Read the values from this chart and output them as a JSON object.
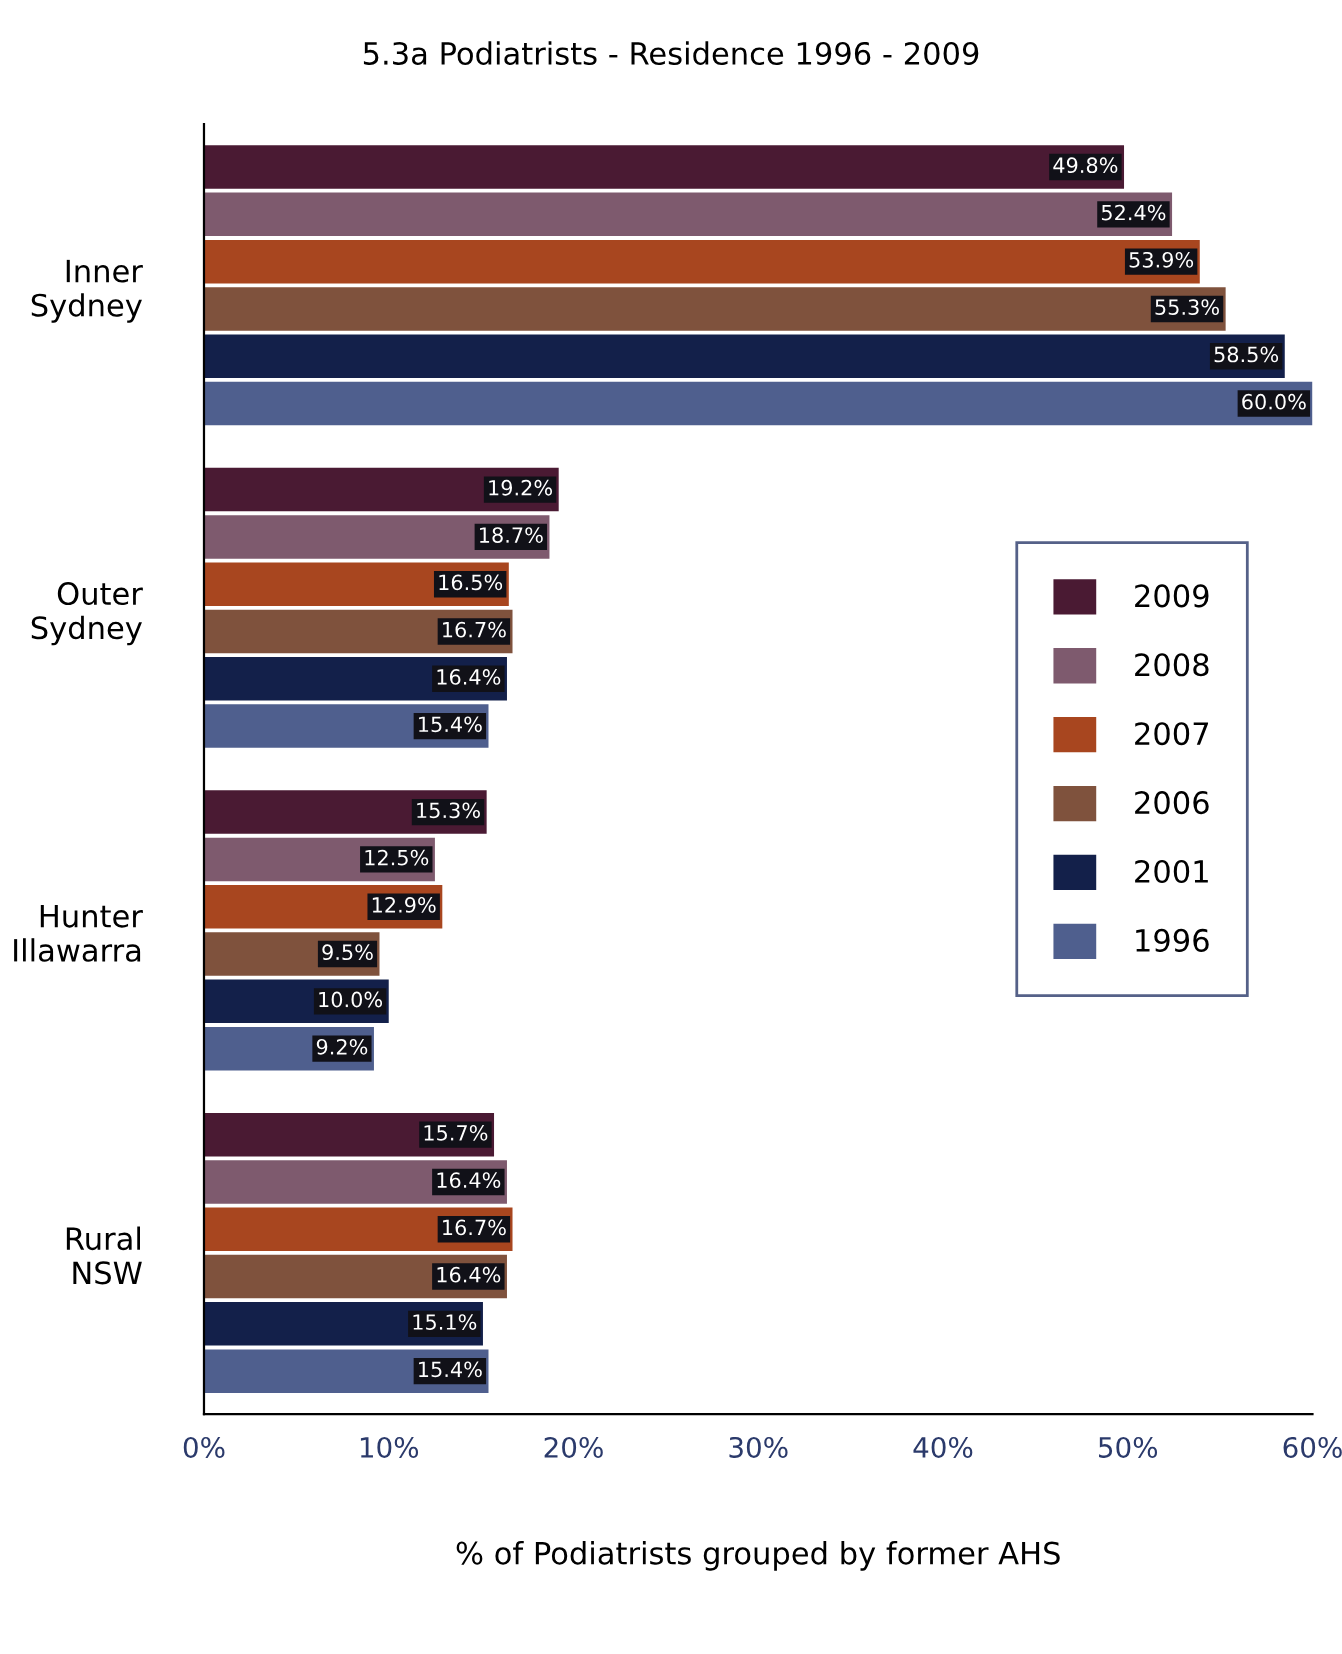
{
  "chart_data": {
    "type": "bar",
    "orientation": "horizontal",
    "title": "5.3a Podiatrists - Residence 1996 - 2009",
    "xlabel": "% of Podiatrists grouped by former AHS",
    "categories": [
      "Inner\nSydney",
      "Outer\nSydney",
      "Hunter\nIllawarra",
      "Rural\nNSW"
    ],
    "series": [
      {
        "name": "2009",
        "color": "#4a1a33",
        "values": [
          49.8,
          19.2,
          15.3,
          15.7
        ],
        "value_labels": [
          "49.8%",
          "19.2%",
          "15.3%",
          "15.7%"
        ]
      },
      {
        "name": "2008",
        "color": "#7e5a6e",
        "values": [
          52.4,
          18.7,
          12.5,
          16.4
        ],
        "value_labels": [
          "52.4%",
          "18.7%",
          "12.5%",
          "16.4%"
        ]
      },
      {
        "name": "2007",
        "color": "#a8461f",
        "values": [
          53.9,
          16.5,
          12.9,
          16.7
        ],
        "value_labels": [
          "53.9%",
          "16.5%",
          "12.9%",
          "16.7%"
        ]
      },
      {
        "name": "2006",
        "color": "#7f523d",
        "values": [
          55.3,
          16.7,
          9.5,
          16.4
        ],
        "value_labels": [
          "55.3%",
          "16.7%",
          "9.5%",
          "16.4%"
        ]
      },
      {
        "name": "2001",
        "color": "#13204a",
        "values": [
          58.5,
          16.4,
          10.0,
          15.1
        ],
        "value_labels": [
          "58.5%",
          "16.4%",
          "10.0%",
          "15.1%"
        ]
      },
      {
        "name": "1996",
        "color": "#4f5f8e",
        "values": [
          60.0,
          15.4,
          9.2,
          15.4
        ],
        "value_labels": [
          "60.0%",
          "15.4%",
          "9.2%",
          "15.4%"
        ]
      }
    ],
    "xlim": [
      0,
      60
    ],
    "xticks": [
      {
        "value": 0,
        "label": "0%"
      },
      {
        "value": 10,
        "label": "10%"
      },
      {
        "value": 20,
        "label": "20%"
      },
      {
        "value": 30,
        "label": "30%"
      },
      {
        "value": 40,
        "label": "40%"
      },
      {
        "value": 50,
        "label": "50%"
      },
      {
        "value": 60,
        "label": "60%"
      }
    ],
    "grid": false,
    "legend": "right"
  }
}
